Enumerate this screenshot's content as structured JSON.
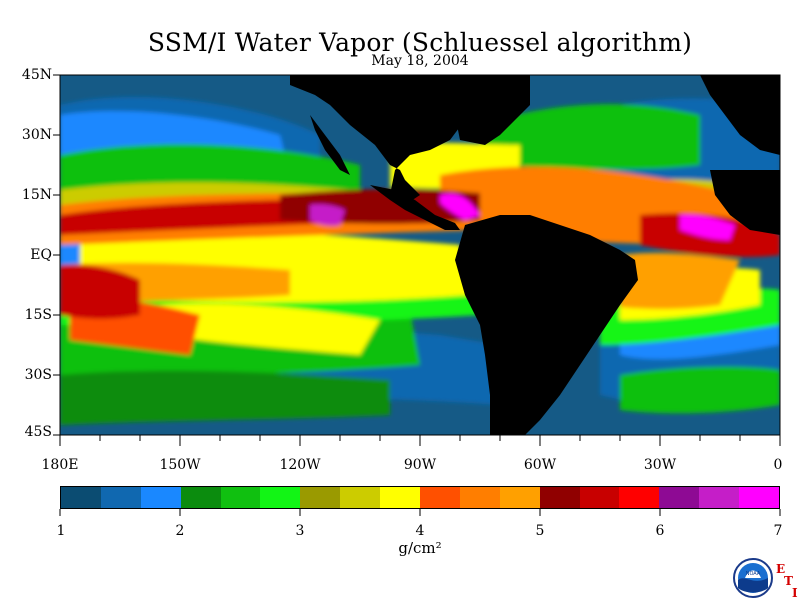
{
  "title": "SSM/I Water Vapor (Schluessel algorithm)",
  "date": "May 18, 2004",
  "lat_labels": [
    "45N",
    "30N",
    "15N",
    "EQ",
    "15S",
    "30S",
    "45S"
  ],
  "lon_labels": [
    "180E",
    "150W",
    "120W",
    "90W",
    "60W",
    "30W",
    "0"
  ],
  "colorbar": {
    "colors": [
      "#0b4c72",
      "#1068b0",
      "#1a88ff",
      "#0b8c0e",
      "#10c010",
      "#12f515",
      "#9a9a00",
      "#cccc00",
      "#ffff00",
      "#ff5000",
      "#ff7e00",
      "#ffa000",
      "#900000",
      "#c80000",
      "#ff0000",
      "#8e0a94",
      "#c51ec8",
      "#ff00ff"
    ],
    "ticks": [
      "1",
      "2",
      "3",
      "4",
      "5",
      "6",
      "7"
    ]
  },
  "units": "g/cm²",
  "logo": {
    "icon": "noaa-logo-icon",
    "letters": [
      "E",
      "T",
      "I"
    ]
  },
  "colors": {
    "land": "#000000",
    "ocean_low": "#155a86",
    "accent": "#d40000"
  }
}
